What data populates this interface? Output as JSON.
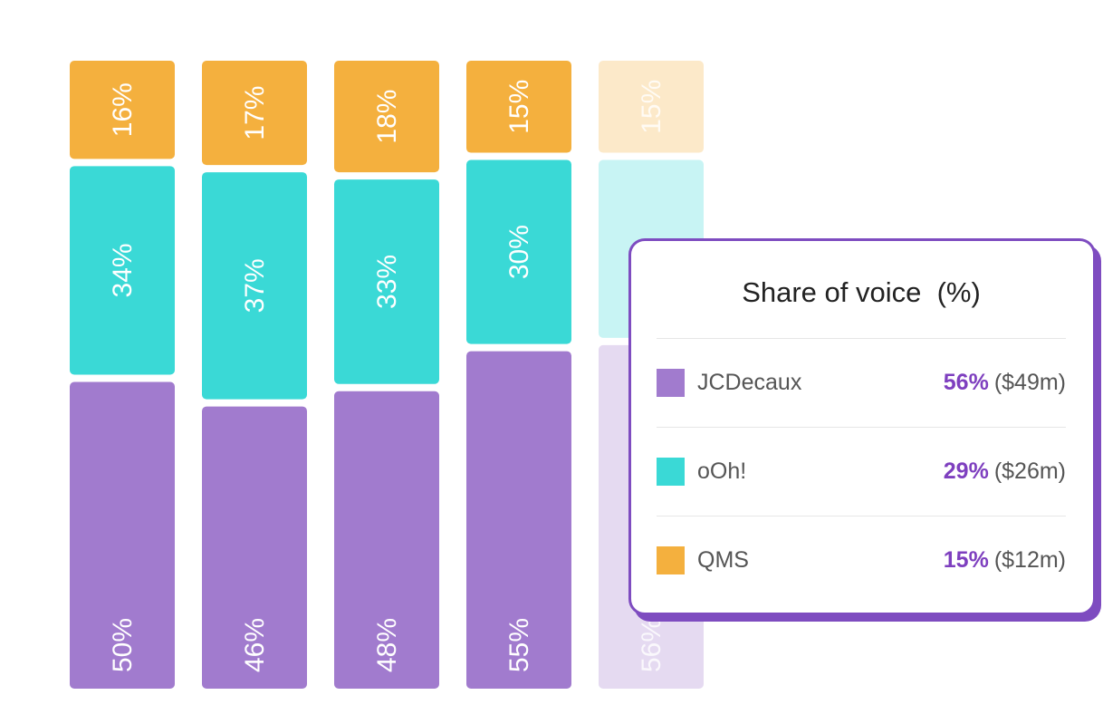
{
  "colors": {
    "JCDecaux": "#a17bce",
    "oOh!": "#3ad9d6",
    "QMS": "#f4b03e",
    "accent": "#7e3fbf"
  },
  "chart_data": {
    "type": "bar",
    "stacked": true,
    "categories": [
      "",
      "",
      "",
      "",
      ""
    ],
    "series": [
      {
        "name": "JCDecaux",
        "values": [
          50,
          46,
          48,
          55,
          56
        ]
      },
      {
        "name": "oOh!",
        "values": [
          34,
          37,
          33,
          30,
          29
        ]
      },
      {
        "name": "QMS",
        "values": [
          16,
          17,
          18,
          15,
          15
        ]
      }
    ],
    "data_labels": [
      [
        "50%",
        "34%",
        "16%"
      ],
      [
        "46%",
        "37%",
        "17%"
      ],
      [
        "48%",
        "33%",
        "18%"
      ],
      [
        "55%",
        "30%",
        "15%"
      ],
      [
        "56%",
        "",
        "15%"
      ]
    ],
    "highlighted_bar": 4,
    "title": "",
    "xlabel": "",
    "ylabel": "",
    "grid": false
  },
  "tooltip": {
    "title": "Share of voice  (%)",
    "rows": [
      {
        "label": "JCDecaux",
        "pct": "56%",
        "amount": "($49m)"
      },
      {
        "label": "oOh!",
        "pct": "29%",
        "amount": "($26m)"
      },
      {
        "label": "QMS",
        "pct": "15%",
        "amount": "($12m)"
      }
    ]
  }
}
